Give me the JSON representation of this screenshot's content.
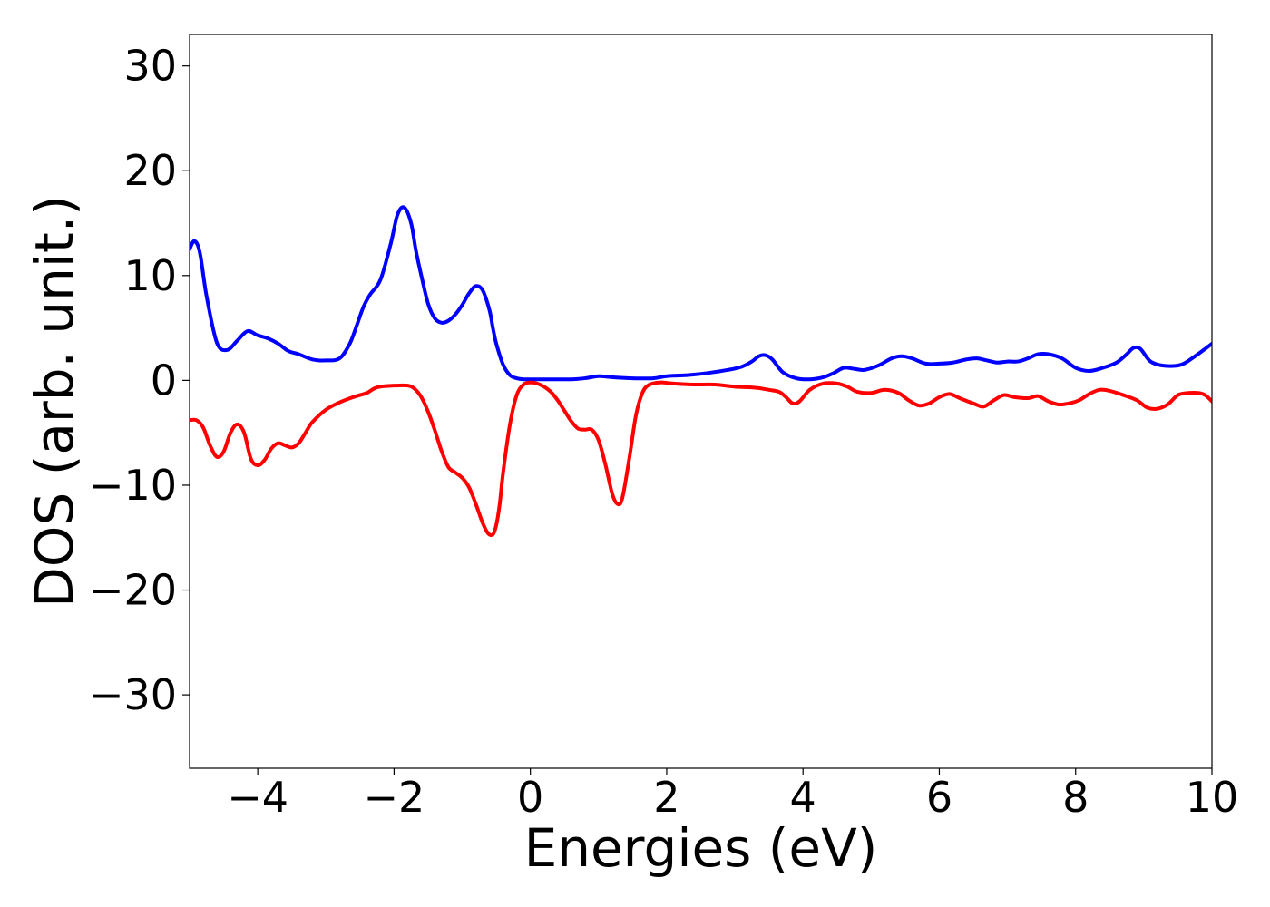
{
  "chart_data": {
    "type": "line",
    "title": "",
    "xlabel": "Energies (eV)",
    "ylabel": "DOS (arb. unit.)",
    "xlim": [
      -5,
      10
    ],
    "ylim": [
      -37,
      33
    ],
    "xticks": [
      -4,
      -2,
      0,
      2,
      4,
      6,
      8,
      10
    ],
    "xtick_labels": [
      "−4",
      "−2",
      "0",
      "2",
      "4",
      "6",
      "8",
      "10"
    ],
    "yticks": [
      30,
      20,
      10,
      0,
      -10,
      -20,
      -30
    ],
    "ytick_labels": [
      "30",
      "20",
      "10",
      "0",
      "−10",
      "−20",
      "−30"
    ],
    "grid": false,
    "legend": false,
    "series": [
      {
        "color": "#0000ff",
        "x": [
          -5.0,
          -4.93,
          -4.85,
          -4.75,
          -4.6,
          -4.45,
          -4.3,
          -4.15,
          -4.0,
          -3.85,
          -3.7,
          -3.55,
          -3.4,
          -3.2,
          -3.0,
          -2.8,
          -2.65,
          -2.55,
          -2.45,
          -2.35,
          -2.2,
          -2.05,
          -1.95,
          -1.85,
          -1.75,
          -1.68,
          -1.6,
          -1.5,
          -1.4,
          -1.3,
          -1.2,
          -1.1,
          -1.0,
          -0.9,
          -0.8,
          -0.7,
          -0.6,
          -0.55,
          -0.5,
          -0.4,
          -0.3,
          -0.2,
          -0.1,
          0.0,
          0.2,
          0.4,
          0.6,
          0.8,
          1.0,
          1.2,
          1.5,
          1.8,
          2.0,
          2.3,
          2.6,
          2.9,
          3.1,
          3.25,
          3.35,
          3.45,
          3.55,
          3.7,
          3.9,
          4.1,
          4.3,
          4.45,
          4.6,
          4.75,
          4.9,
          5.1,
          5.3,
          5.45,
          5.6,
          5.8,
          6.0,
          6.2,
          6.4,
          6.55,
          6.7,
          6.85,
          7.0,
          7.15,
          7.3,
          7.45,
          7.6,
          7.8,
          8.0,
          8.2,
          8.4,
          8.6,
          8.75,
          8.85,
          8.95,
          9.1,
          9.3,
          9.55,
          9.75,
          10.0
        ],
        "y": [
          12.5,
          13.3,
          12.2,
          8.0,
          3.6,
          2.9,
          3.8,
          4.7,
          4.3,
          4.0,
          3.5,
          2.8,
          2.5,
          2.0,
          1.9,
          2.1,
          3.5,
          5.2,
          7.0,
          8.2,
          9.6,
          13.0,
          15.8,
          16.5,
          15.0,
          12.4,
          10.0,
          7.3,
          5.9,
          5.5,
          5.7,
          6.3,
          7.2,
          8.3,
          9.0,
          8.6,
          6.7,
          5.0,
          3.5,
          1.5,
          0.5,
          0.2,
          0.1,
          0.1,
          0.1,
          0.1,
          0.1,
          0.2,
          0.4,
          0.3,
          0.2,
          0.2,
          0.4,
          0.5,
          0.7,
          1.0,
          1.3,
          1.8,
          2.3,
          2.4,
          2.0,
          0.8,
          0.2,
          0.1,
          0.3,
          0.7,
          1.2,
          1.1,
          1.0,
          1.4,
          2.1,
          2.3,
          2.1,
          1.6,
          1.6,
          1.7,
          2.0,
          2.1,
          1.9,
          1.7,
          1.8,
          1.8,
          2.1,
          2.5,
          2.5,
          2.1,
          1.2,
          0.9,
          1.2,
          1.7,
          2.5,
          3.1,
          3.0,
          1.8,
          1.4,
          1.5,
          2.3,
          3.5
        ]
      },
      {
        "color": "#ff0000",
        "x": [
          -5.0,
          -4.9,
          -4.8,
          -4.7,
          -4.6,
          -4.5,
          -4.4,
          -4.3,
          -4.2,
          -4.1,
          -4.0,
          -3.9,
          -3.8,
          -3.7,
          -3.6,
          -3.5,
          -3.4,
          -3.3,
          -3.2,
          -3.0,
          -2.8,
          -2.6,
          -2.4,
          -2.3,
          -2.2,
          -2.0,
          -1.8,
          -1.7,
          -1.6,
          -1.5,
          -1.4,
          -1.3,
          -1.2,
          -1.1,
          -1.0,
          -0.9,
          -0.8,
          -0.7,
          -0.62,
          -0.55,
          -0.5,
          -0.45,
          -0.4,
          -0.3,
          -0.2,
          -0.1,
          0.0,
          0.1,
          0.2,
          0.3,
          0.4,
          0.5,
          0.6,
          0.7,
          0.8,
          0.9,
          1.0,
          1.1,
          1.2,
          1.28,
          1.35,
          1.45,
          1.55,
          1.65,
          1.75,
          1.9,
          2.1,
          2.4,
          2.7,
          3.0,
          3.3,
          3.5,
          3.65,
          3.75,
          3.85,
          3.95,
          4.1,
          4.3,
          4.5,
          4.65,
          4.8,
          5.0,
          5.2,
          5.4,
          5.55,
          5.7,
          5.85,
          6.0,
          6.15,
          6.3,
          6.5,
          6.65,
          6.8,
          6.95,
          7.1,
          7.3,
          7.45,
          7.6,
          7.75,
          7.9,
          8.05,
          8.2,
          8.35,
          8.5,
          8.7,
          8.9,
          9.05,
          9.2,
          9.35,
          9.5,
          9.65,
          9.8,
          9.9,
          10.0
        ],
        "y": [
          -3.8,
          -3.8,
          -4.5,
          -6.2,
          -7.3,
          -6.8,
          -5.0,
          -4.2,
          -5.0,
          -7.5,
          -8.1,
          -7.6,
          -6.5,
          -6.0,
          -6.2,
          -6.4,
          -6.0,
          -5.0,
          -4.0,
          -2.8,
          -2.1,
          -1.6,
          -1.2,
          -0.8,
          -0.6,
          -0.5,
          -0.5,
          -0.8,
          -1.6,
          -3.0,
          -4.8,
          -6.8,
          -8.3,
          -8.8,
          -9.3,
          -10.2,
          -11.8,
          -13.6,
          -14.6,
          -14.7,
          -13.8,
          -11.8,
          -8.8,
          -4.2,
          -1.4,
          -0.4,
          -0.2,
          -0.3,
          -0.6,
          -1.1,
          -1.9,
          -2.9,
          -3.9,
          -4.6,
          -4.7,
          -4.7,
          -5.7,
          -8.0,
          -10.8,
          -11.8,
          -11.2,
          -7.5,
          -3.3,
          -1.1,
          -0.4,
          -0.2,
          -0.3,
          -0.4,
          -0.4,
          -0.6,
          -0.7,
          -0.9,
          -1.1,
          -1.6,
          -2.2,
          -2.0,
          -0.9,
          -0.3,
          -0.3,
          -0.6,
          -1.1,
          -1.2,
          -0.9,
          -1.2,
          -1.9,
          -2.4,
          -2.2,
          -1.6,
          -1.3,
          -1.7,
          -2.2,
          -2.5,
          -1.9,
          -1.4,
          -1.6,
          -1.7,
          -1.5,
          -2.0,
          -2.3,
          -2.2,
          -1.9,
          -1.3,
          -0.9,
          -1.0,
          -1.4,
          -1.9,
          -2.6,
          -2.7,
          -2.3,
          -1.4,
          -1.2,
          -1.2,
          -1.4,
          -2.0
        ]
      }
    ]
  }
}
